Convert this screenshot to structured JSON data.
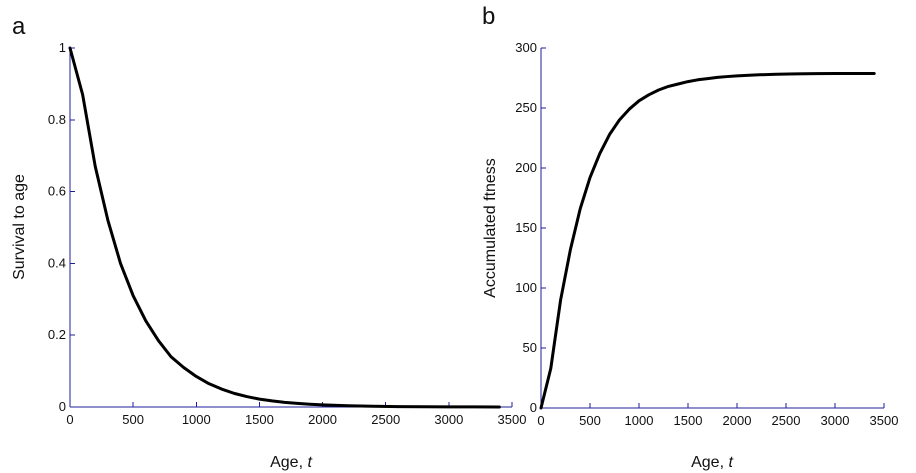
{
  "chart_data": [
    {
      "type": "line",
      "panel_label": "a",
      "xlabel_main": "Age, ",
      "xlabel_var": "t",
      "ylabel": "Survival to age",
      "xlim": [
        0,
        3500
      ],
      "ylim": [
        0,
        1
      ],
      "x_ticks": [
        "0",
        "500",
        "1000",
        "1500",
        "2000",
        "2500",
        "3000",
        "3500"
      ],
      "y_ticks": [
        "0",
        "0.2",
        "0.4",
        "0.6",
        "0.8",
        "1"
      ],
      "grid": false,
      "series": [
        {
          "x": [
            0,
            100,
            200,
            300,
            400,
            500,
            600,
            700,
            800,
            900,
            1000,
            1100,
            1200,
            1300,
            1400,
            1500,
            1600,
            1700,
            1800,
            1900,
            2000,
            2200,
            2400,
            2600,
            2800,
            3000,
            3200,
            3400
          ],
          "y": [
            1.0,
            0.87,
            0.67,
            0.52,
            0.4,
            0.31,
            0.24,
            0.185,
            0.14,
            0.11,
            0.085,
            0.065,
            0.05,
            0.038,
            0.029,
            0.022,
            0.017,
            0.013,
            0.01,
            0.0077,
            0.006,
            0.0035,
            0.002,
            0.0012,
            0.0007,
            0.0004,
            0.0002,
            0.0001
          ]
        }
      ]
    },
    {
      "type": "line",
      "panel_label": "b",
      "xlabel_main": "Age, ",
      "xlabel_var": "t",
      "ylabel": "Accumulated ftness",
      "xlim": [
        0,
        3500
      ],
      "ylim": [
        0,
        300
      ],
      "x_ticks": [
        "0",
        "500",
        "1000",
        "1500",
        "2000",
        "2500",
        "3000",
        "3500"
      ],
      "y_ticks": [
        "0",
        "50",
        "100",
        "150",
        "200",
        "250",
        "300"
      ],
      "grid": false,
      "series": [
        {
          "x": [
            0,
            100,
            200,
            300,
            400,
            500,
            600,
            700,
            800,
            900,
            1000,
            1100,
            1200,
            1300,
            1400,
            1500,
            1600,
            1700,
            1800,
            1900,
            2000,
            2200,
            2400,
            2600,
            2800,
            3000,
            3200,
            3400
          ],
          "y": [
            0,
            33,
            90,
            132,
            166,
            192,
            212,
            228,
            240,
            249,
            256,
            261,
            265,
            268,
            270,
            272,
            273.5,
            274.5,
            275.5,
            276.2,
            276.8,
            277.6,
            278.1,
            278.4,
            278.6,
            278.7,
            278.8,
            278.8
          ]
        }
      ]
    }
  ]
}
